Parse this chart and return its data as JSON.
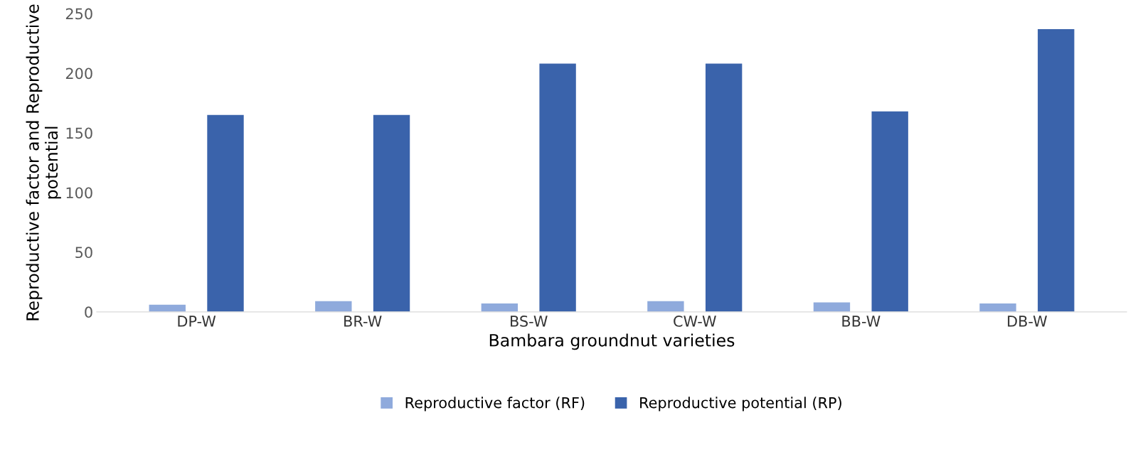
{
  "chart_data": {
    "type": "bar",
    "xlabel": "Bambara groundnut varieties",
    "ylabel": "Reproductive factor and Reproductive potential",
    "categories": [
      "DP-W",
      "BR-W",
      "BS-W",
      "CW-W",
      "BB-W",
      "DB-W"
    ],
    "series": [
      {
        "name": "Reproductive factor (RF)",
        "color": "#8faadc",
        "values": [
          6,
          9,
          7,
          9,
          8,
          7
        ]
      },
      {
        "name": "Reproductive potential (RP)",
        "color": "#3a63ab",
        "values": [
          165,
          165,
          208,
          208,
          168,
          237
        ]
      }
    ],
    "ylim": [
      0,
      250
    ],
    "yticks": [
      0,
      50,
      100,
      150,
      200,
      250
    ],
    "grid": false,
    "legend": "bottom"
  }
}
